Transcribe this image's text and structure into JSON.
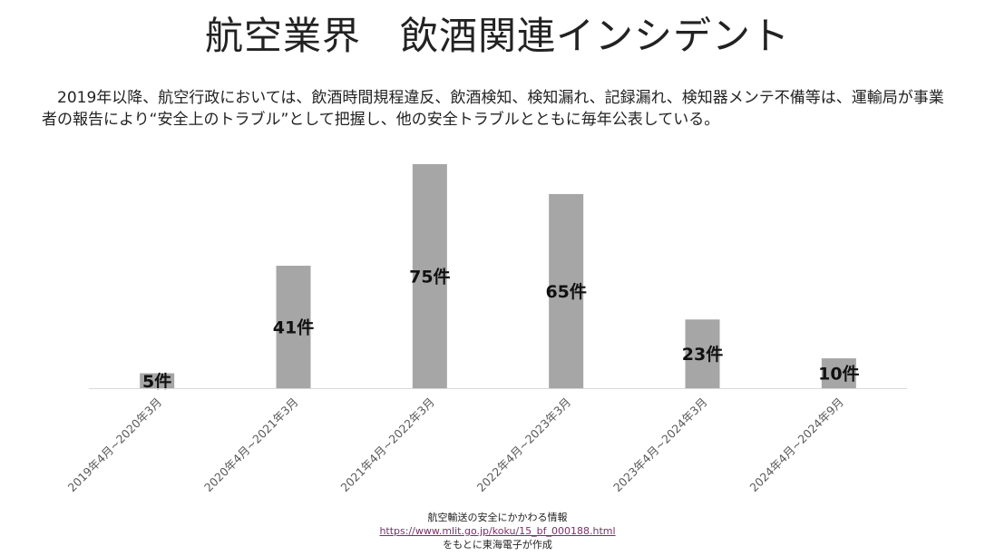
{
  "title": "航空業界　飲酒関連インシデント",
  "description": "　2019年以降、航空行政においては、飲酒時間規程違反、飲酒検知、検知漏れ、記録漏れ、検知器メンテ不備等は、運輸局が事業者の報告により“安全上のトラブル”として把握し、他の安全トラブルとともに毎年公表している。",
  "chart_data": {
    "type": "bar",
    "categories": [
      "2019年4月~2020年3月",
      "2020年4月~2021年3月",
      "2021年4月~2022年3月",
      "2022年4月~2023年3月",
      "2023年4月~2024年3月",
      "2024年4月~2024年9月"
    ],
    "values": [
      5,
      41,
      75,
      65,
      23,
      10
    ],
    "data_labels": [
      "5件",
      "41件",
      "75件",
      "65件",
      "23件",
      "10件"
    ],
    "ylim": [
      0,
      75
    ],
    "grid": false,
    "bar_color": "#a6a6a6",
    "axis_color": "#d9d9d9"
  },
  "source": {
    "line1": "航空輸送の安全にかかわる情報",
    "url": "https://www.mlit.go.jp/koku/15_bf_000188.html",
    "line3": "をもとに東海電子が作成"
  }
}
